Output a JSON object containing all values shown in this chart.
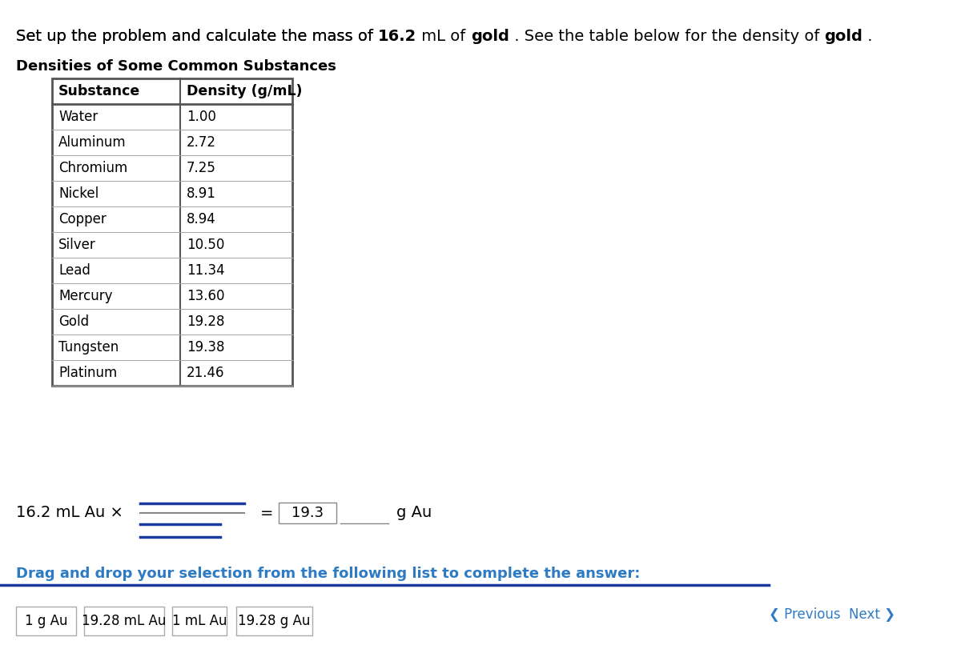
{
  "title_text": "Set up the problem and calculate the mass of ",
  "title_bold1": "16.2",
  "title_mid": " mL of ",
  "title_bold2": "gold",
  "title_end": " . See the table below for the density of ",
  "title_bold3": "gold",
  "title_end2": " .",
  "table_title": "Densities of Some Common Substances",
  "col1_header": "Substance",
  "col2_header": "Density (g/mL)",
  "substances": [
    "Water",
    "Aluminum",
    "Chromium",
    "Nickel",
    "Copper",
    "Silver",
    "Lead",
    "Mercury",
    "Gold",
    "Tungsten",
    "Platinum"
  ],
  "densities": [
    "1.00",
    "2.72",
    "7.25",
    "8.91",
    "8.94",
    "10.50",
    "11.34",
    "13.60",
    "19.28",
    "19.38",
    "21.46"
  ],
  "equation_left": "16.2 mL Au ×",
  "equation_result": "19.3",
  "equation_right": "g Au",
  "drag_drop_text": "Drag and drop your selection from the following list to complete the answer:",
  "options": [
    "1 g Au",
    "19.28 mL Au",
    "1 mL Au",
    "19.28 g Au"
  ],
  "nav_previous": "❮ Previous",
  "nav_next": "Next ❯",
  "bg_color": "#ffffff",
  "table_border_color": "#555555",
  "table_line_color": "#aaaaaa",
  "header_bg": "#ffffff",
  "blue_line_color": "#1a3a9e",
  "drag_text_color": "#2e7bc4",
  "nav_color": "#2e7bc4",
  "fraction_line_color": "#555555",
  "option_border": "#aaaaaa",
  "bottom_bar_color": "#1a3a9e"
}
